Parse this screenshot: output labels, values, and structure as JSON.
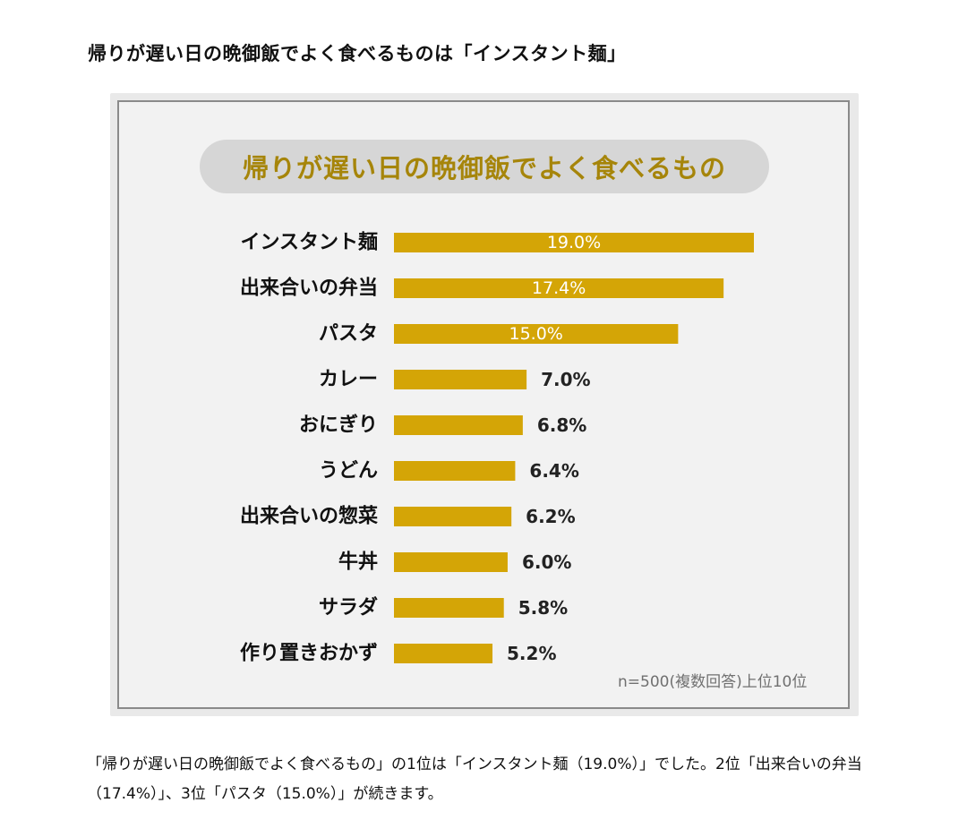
{
  "article": {
    "title": "帰りが遅い日の晩御飯でよく食べるものは「インスタント麺」",
    "body": "「帰りが遅い日の晩御飯でよく食べるもの」の1位は「インスタント麺（19.0%）」でした。2位「出来合いの弁当（17.4%）」、3位「パスタ（15.0%）」が続きます。"
  },
  "colors": {
    "bar": "#d4a506",
    "title_text": "#a6850a",
    "label_inside": "#ffffff",
    "label_outside": "#222222"
  },
  "chart_data": {
    "type": "bar",
    "orientation": "horizontal",
    "title": "帰りが遅い日の晩御飯でよく食べるもの",
    "categories": [
      "インスタント麺",
      "出来合いの弁当",
      "パスタ",
      "カレー",
      "おにぎり",
      "うどん",
      "出来合いの惣菜",
      "牛丼",
      "サラダ",
      "作り置きおかず"
    ],
    "values": [
      19.0,
      17.4,
      15.0,
      7.0,
      6.8,
      6.4,
      6.2,
      6.0,
      5.8,
      5.2
    ],
    "value_labels": [
      "19.0%",
      "17.4%",
      "15.0%",
      "7.0%",
      "6.8%",
      "6.4%",
      "6.2%",
      "6.0%",
      "5.8%",
      "5.2%"
    ],
    "unit": "%",
    "xlim": [
      0,
      19.0
    ],
    "note": "n=500(複数回答)上位10位",
    "xlabel": "",
    "ylabel": ""
  }
}
